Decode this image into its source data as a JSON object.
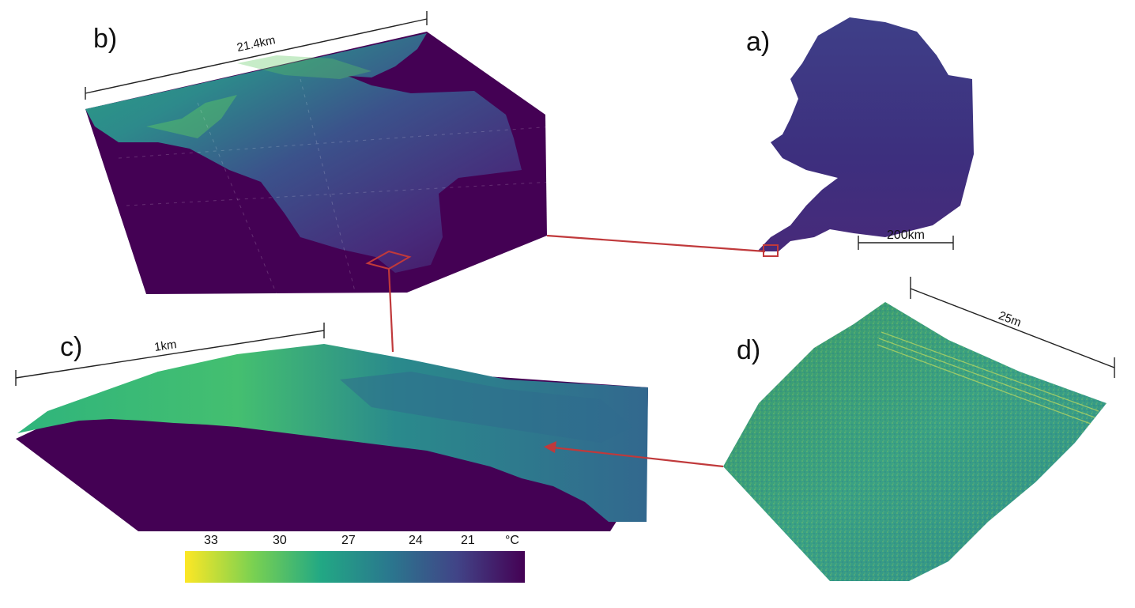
{
  "panels": {
    "a": {
      "label": "a)",
      "scale_label": "200km"
    },
    "b": {
      "label": "b)",
      "scale_label": "21.4km"
    },
    "c": {
      "label": "c)",
      "scale_label": "1km"
    },
    "d": {
      "label": "d)",
      "scale_label": "25m"
    }
  },
  "colorbar": {
    "ticks": [
      "33",
      "30",
      "27",
      "24",
      "21"
    ],
    "unit": "°C",
    "colormap": "viridis",
    "colors": [
      "#fde725",
      "#7ad151",
      "#22a884",
      "#2a788e",
      "#414487",
      "#440154"
    ]
  },
  "colors": {
    "connector": "#c0393b",
    "background_dark": "#440154"
  }
}
